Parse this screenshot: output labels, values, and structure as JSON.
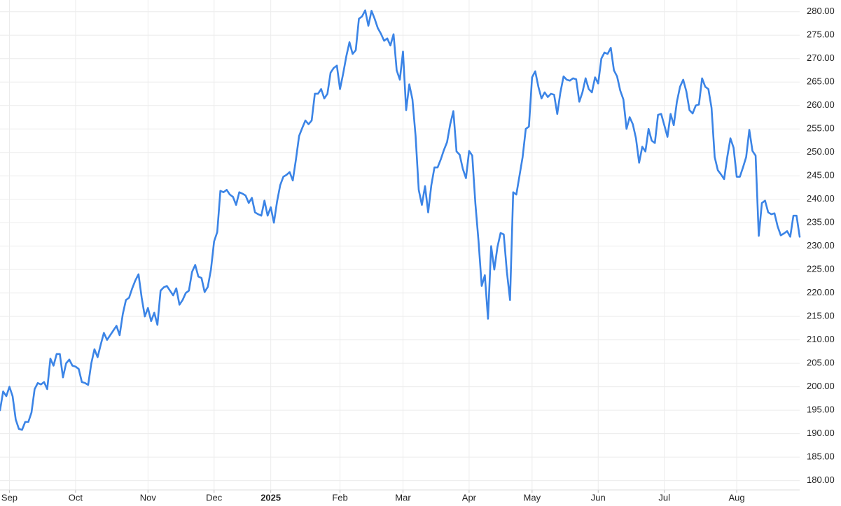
{
  "chart_data": {
    "type": "line",
    "color": "#3b84e6",
    "grid": true,
    "ylim": [
      178,
      282.5
    ],
    "yticks": [
      {
        "value": 180,
        "label": "180.00"
      },
      {
        "value": 185,
        "label": "185.00"
      },
      {
        "value": 190,
        "label": "190.00"
      },
      {
        "value": 195,
        "label": "195.00"
      },
      {
        "value": 200,
        "label": "200.00"
      },
      {
        "value": 205,
        "label": "205.00"
      },
      {
        "value": 210,
        "label": "210.00"
      },
      {
        "value": 215,
        "label": "215.00"
      },
      {
        "value": 220,
        "label": "220.00"
      },
      {
        "value": 225,
        "label": "225.00"
      },
      {
        "value": 230,
        "label": "230.00"
      },
      {
        "value": 235,
        "label": "235.00"
      },
      {
        "value": 240,
        "label": "240.00"
      },
      {
        "value": 245,
        "label": "245.00"
      },
      {
        "value": 250,
        "label": "250.00"
      },
      {
        "value": 255,
        "label": "255.00"
      },
      {
        "value": 260,
        "label": "260.00"
      },
      {
        "value": 265,
        "label": "265.00"
      },
      {
        "value": 270,
        "label": "270.00"
      },
      {
        "value": 275,
        "label": "275.00"
      },
      {
        "value": 280,
        "label": "280.00"
      }
    ],
    "categories": [
      null,
      null,
      null,
      "Sep",
      null,
      null,
      null,
      null,
      null,
      null,
      null,
      null,
      null,
      null,
      null,
      null,
      null,
      null,
      null,
      null,
      null,
      null,
      null,
      null,
      "Oct",
      null,
      null,
      null,
      null,
      null,
      null,
      null,
      null,
      null,
      null,
      null,
      null,
      null,
      null,
      null,
      null,
      null,
      null,
      null,
      null,
      null,
      null,
      "Nov",
      null,
      null,
      null,
      null,
      null,
      null,
      null,
      null,
      null,
      null,
      null,
      null,
      null,
      null,
      null,
      null,
      null,
      null,
      null,
      null,
      "Dec",
      null,
      null,
      null,
      null,
      null,
      null,
      null,
      null,
      null,
      null,
      null,
      null,
      null,
      null,
      null,
      null,
      null,
      "2025",
      null,
      null,
      null,
      null,
      null,
      null,
      null,
      null,
      null,
      null,
      null,
      null,
      null,
      null,
      null,
      null,
      null,
      null,
      null,
      null,
      null,
      "Feb",
      null,
      null,
      null,
      null,
      null,
      null,
      null,
      null,
      null,
      null,
      null,
      null,
      null,
      null,
      null,
      null,
      null,
      null,
      null,
      "Mar",
      null,
      null,
      null,
      null,
      null,
      null,
      null,
      null,
      null,
      null,
      null,
      null,
      null,
      null,
      null,
      null,
      null,
      null,
      null,
      null,
      "Apr",
      null,
      null,
      null,
      null,
      null,
      null,
      null,
      null,
      null,
      null,
      null,
      null,
      null,
      null,
      null,
      null,
      null,
      null,
      null,
      "May",
      null,
      null,
      null,
      null,
      null,
      null,
      null,
      null,
      null,
      null,
      null,
      null,
      null,
      null,
      null,
      null,
      null,
      null,
      null,
      null,
      "Jun",
      null,
      null,
      null,
      null,
      null,
      null,
      null,
      null,
      null,
      null,
      null,
      null,
      null,
      null,
      null,
      null,
      null,
      null,
      null,
      null,
      "Jul",
      null,
      null,
      null,
      null,
      null,
      null,
      null,
      null,
      null,
      null,
      null,
      null,
      null,
      null,
      null,
      null,
      null,
      null,
      null,
      null,
      null,
      null,
      "Aug",
      null,
      null,
      null,
      null,
      null,
      null,
      null,
      null,
      null,
      null,
      null,
      null,
      null,
      null,
      null,
      null,
      null,
      null,
      null,
      null
    ],
    "values": [
      195,
      199,
      198,
      200,
      198,
      193,
      191,
      190.8,
      192.5,
      192.5,
      194.5,
      199.5,
      200.8,
      200.5,
      201,
      199.5,
      206,
      204.5,
      207,
      207,
      202,
      205,
      205.8,
      204.5,
      204.3,
      203.8,
      201,
      200.8,
      200.4,
      205,
      208,
      206.3,
      209,
      211.5,
      210,
      211,
      212,
      213,
      211,
      215.5,
      218.5,
      219,
      221,
      222.7,
      224,
      219,
      215,
      216.8,
      214,
      215.8,
      213.2,
      220.5,
      221.2,
      221.5,
      220.5,
      219.5,
      221,
      217.5,
      218.5,
      220,
      220.5,
      224.5,
      226,
      223.5,
      223.2,
      220.2,
      221.3,
      225,
      231,
      233,
      241.8,
      241.5,
      242,
      241,
      240.5,
      238.8,
      241.5,
      241.2,
      240.8,
      239.2,
      240.3,
      237.2,
      236.8,
      236.5,
      239.7,
      236.5,
      238.3,
      235,
      239.5,
      243,
      244.8,
      245.2,
      245.8,
      244,
      248.5,
      253.5,
      255.2,
      256.8,
      256,
      256.8,
      262.5,
      262.5,
      263.5,
      261.5,
      262.5,
      267,
      268,
      268.5,
      263.5,
      266.8,
      270.5,
      273.5,
      271,
      271.8,
      278.5,
      279,
      280.3,
      277,
      280.2,
      278.5,
      276.5,
      275.3,
      273.8,
      274.3,
      272.8,
      275.2,
      267.5,
      265.5,
      271.5,
      259,
      264.5,
      261.3,
      253.5,
      242,
      238.8,
      242.8,
      237.2,
      243,
      246.8,
      246.8,
      248.5,
      250.5,
      252.2,
      256,
      258.8,
      250.2,
      249.5,
      246.5,
      244.5,
      250.3,
      249.3,
      239,
      231,
      221.5,
      223.8,
      214.5,
      230,
      225,
      229.8,
      232.8,
      232.5,
      224.5,
      218.5,
      241.5,
      241,
      245,
      249,
      255,
      255.5,
      266,
      267.3,
      264,
      261.5,
      262.8,
      261.8,
      262.5,
      262.3,
      258.2,
      262.8,
      266.2,
      265.5,
      265.3,
      265.8,
      265.6,
      260.8,
      262.8,
      265.8,
      263.5,
      262.8,
      266,
      264.7,
      270,
      271.3,
      271,
      272.3,
      267.5,
      266.2,
      263.2,
      261.3,
      255,
      257.5,
      256,
      253,
      247.8,
      251.2,
      250.2,
      255,
      252.5,
      252,
      258,
      258.2,
      255.8,
      253.3,
      258.2,
      255.8,
      260.8,
      264,
      265.5,
      263,
      259,
      258.3,
      260,
      260.2,
      265.8,
      264,
      263.5,
      259.5,
      249,
      246.2,
      245.3,
      244.3,
      249,
      253,
      251,
      244.8,
      244.8,
      246.8,
      249,
      254.8,
      250.3,
      249.3,
      232.2,
      239.2,
      239.7,
      237.2,
      236.8,
      237,
      234.2,
      232.3,
      232.7,
      233.2,
      232,
      236.5,
      236.5,
      232
    ]
  }
}
